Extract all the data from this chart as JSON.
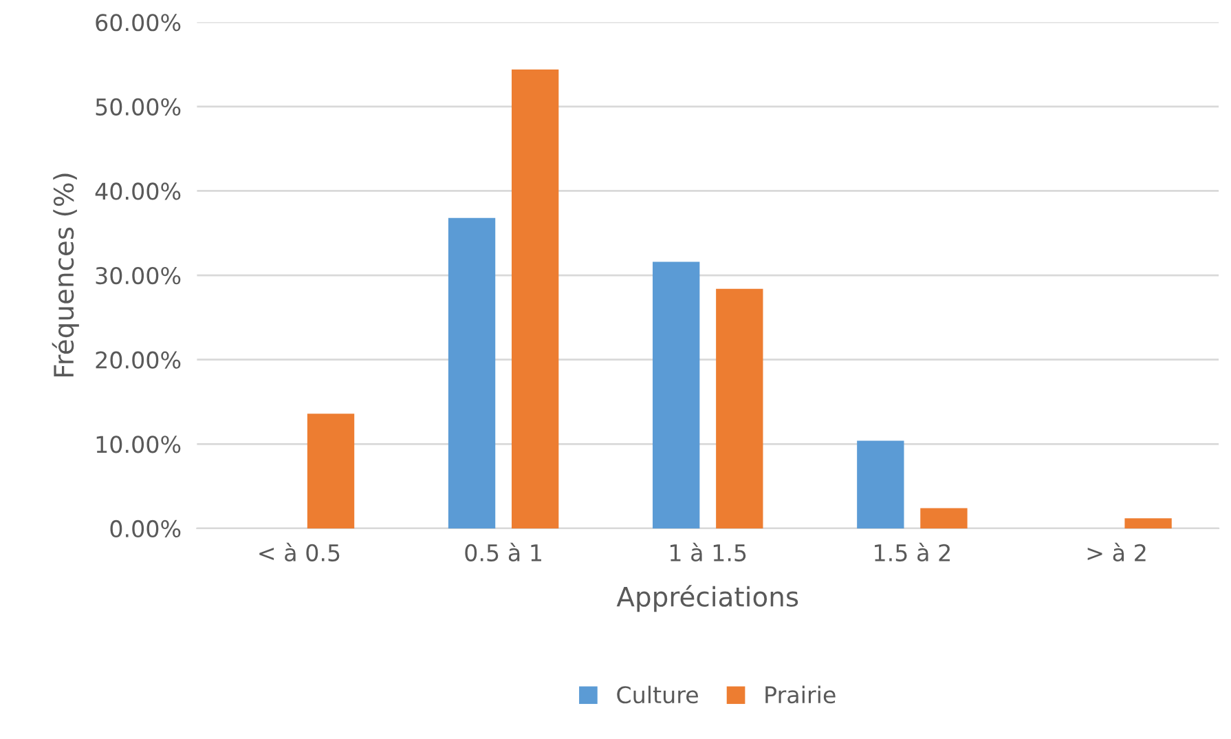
{
  "chart_data": {
    "type": "bar",
    "xlabel": "Appréciations",
    "ylabel": "Fréquences (%)",
    "categories": [
      "< à 0.5",
      "0.5 à 1",
      "1 à 1.5",
      "1.5 à 2",
      "> à 2"
    ],
    "series": [
      {
        "name": "Culture",
        "color": "#5b9bd5",
        "values": [
          0,
          36.8,
          31.6,
          10.4,
          0
        ]
      },
      {
        "name": "Prairie",
        "color": "#ed7d31",
        "values": [
          13.6,
          54.4,
          28.4,
          2.4,
          1.2
        ]
      }
    ],
    "ylim": [
      0,
      60
    ],
    "yticks": [
      {
        "value": 0,
        "label": "0.00%"
      },
      {
        "value": 10,
        "label": "10.00%"
      },
      {
        "value": 20,
        "label": "20.00%"
      },
      {
        "value": 30,
        "label": "30.00%"
      },
      {
        "value": 40,
        "label": "40.00%"
      },
      {
        "value": 50,
        "label": "50.00%"
      },
      {
        "value": 60,
        "label": "60.00%"
      }
    ],
    "grid": "y",
    "legend": "bottom"
  }
}
